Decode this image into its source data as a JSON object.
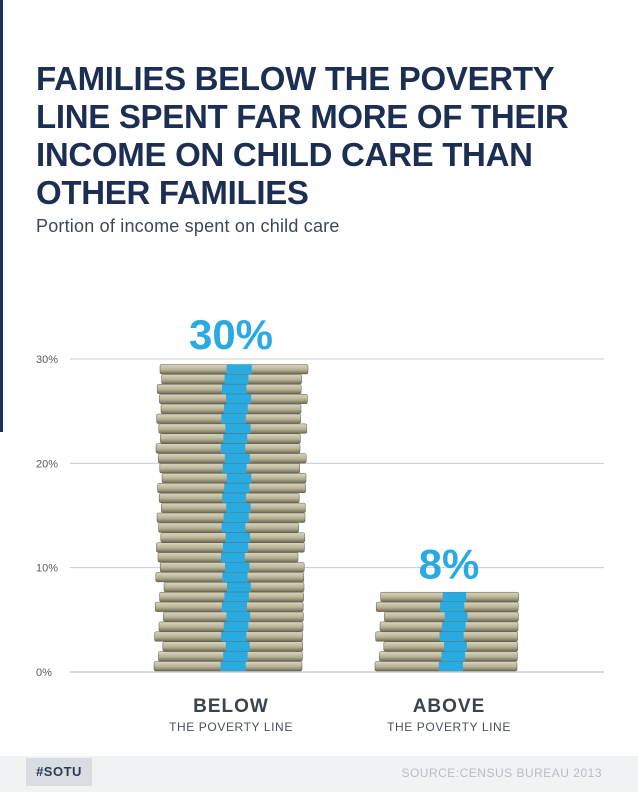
{
  "title": "FAMILIES BELOW THE POVERTY LINE SPENT FAR MORE OF THEIR INCOME ON CHILD CARE THAN OTHER FAMILIES",
  "subtitle": "Portion of income spent on child care",
  "chart_data": {
    "type": "bar",
    "categories": [
      "BELOW",
      "ABOVE"
    ],
    "category_sublabels": [
      "THE POVERTY LINE",
      "THE POVERTY LINE"
    ],
    "values": [
      30,
      8
    ],
    "value_labels": [
      "30%",
      "8%"
    ],
    "yticks": [
      "0%",
      "10%",
      "20%",
      "30%"
    ],
    "ylim": [
      0,
      30
    ],
    "grid": true,
    "bar_style": "stacks of 100-dollar bills",
    "colors": {
      "value_label": "#29abe2",
      "band": "#29abe2",
      "cash": "#b7b295",
      "axis": "#c9ccd1"
    }
  },
  "footer": {
    "hashtag": "#SOTU",
    "source": "SOURCE:CENSUS BUREAU 2013"
  }
}
